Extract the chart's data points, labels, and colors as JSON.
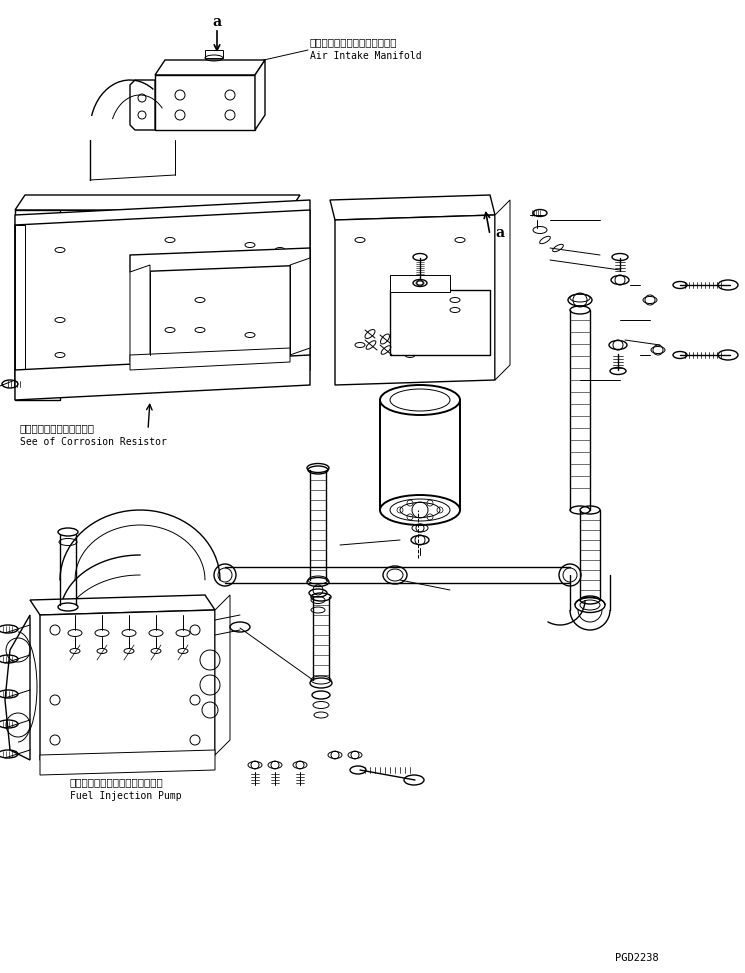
{
  "background_color": "#ffffff",
  "line_color": "#000000",
  "annotation_1_jp": "エアーインテークマニホールド",
  "annotation_1_en": "Air Intake Manifold",
  "annotation_2_jp": "コロージョンレジスタ参照",
  "annotation_2_en": "See of Corrosion Resistor",
  "annotation_3_jp": "フェエルインジェクションポンプ",
  "annotation_3_en": "Fuel Injection Pump",
  "part_number": "PGD2238",
  "figsize": [
    7.45,
    9.73
  ],
  "dpi": 100
}
